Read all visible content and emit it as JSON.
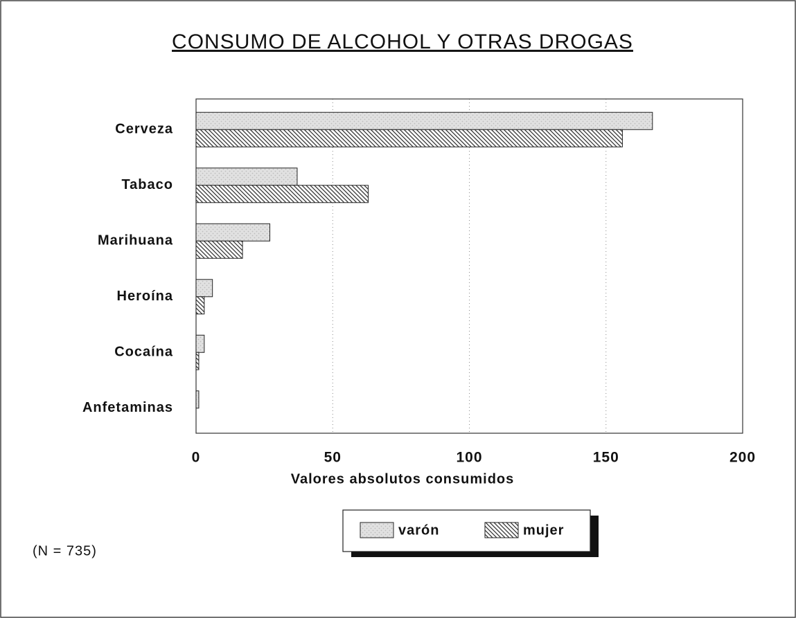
{
  "chart_data": {
    "type": "barh",
    "title": "CONSUMO DE ALCOHOL Y OTRAS DROGAS",
    "categories": [
      "Cerveza",
      "Tabaco",
      "Marihuana",
      "Heroína",
      "Cocaína",
      "Anfetaminas"
    ],
    "series": [
      {
        "name": "varón",
        "color": "#bdbdbd",
        "pattern": "dots",
        "values": [
          167,
          37,
          27,
          6,
          3,
          1
        ]
      },
      {
        "name": "mujer",
        "color": "#333333",
        "pattern": "hatch",
        "values": [
          156,
          63,
          17,
          3,
          1,
          0
        ]
      }
    ],
    "xlim": [
      0,
      200
    ],
    "xticks": [
      0,
      50,
      100,
      150,
      200
    ],
    "xlabel": "Valores absolutos consumidos",
    "grid": true,
    "legend": "bottom",
    "note": "(N = 735)"
  }
}
